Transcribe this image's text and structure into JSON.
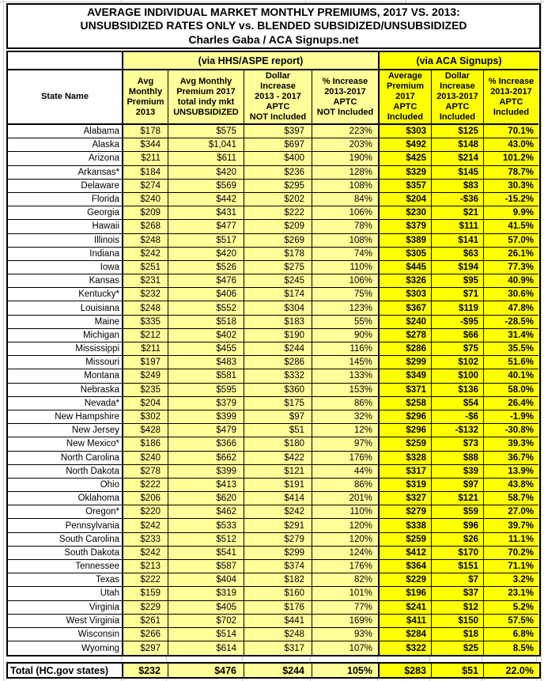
{
  "colors": {
    "light_yellow": "#FFFF99",
    "bright_yellow": "#FFFF00",
    "border": "#000000",
    "gridline": "#C9C9C9"
  },
  "chart_data": {
    "type": "table",
    "title": "AVERAGE INDIVIDUAL MARKET MONTHLY PREMIUMS, 2017 VS. 2013:\nUNSUBSIDIZED RATES ONLY vs. BLENDED SUBSIDIZED/UNSUBSIDIZED\nCharles Gaba / ACA Signups.net",
    "group_headers": {
      "hhs": "(via HHS/ASPE report)",
      "aca": "(via ACA Signups)"
    },
    "columns": [
      "State Name",
      "Avg\nMonthly\nPremium\n2013",
      "Avg Monthly\nPremium 2017\ntotal indy mkt\nUNSUBSIDIZED",
      "Dollar\nIncrease\n2013 - 2017\nAPTC\nNOT Included",
      "% Increase\n2013-2017\nAPTC\nNOT Included",
      "Average\nPremium\n2017\nAPTC\nIncluded",
      "Dollar\nIncrease\n2013-2017\nAPTC\nIncluded",
      "% Increase\n2013-2017\nAPTC\nIncluded"
    ],
    "rows": [
      {
        "state": "Alabama",
        "cells": [
          "$178",
          "$575",
          "$397",
          "223%",
          "$303",
          "$125",
          "70.1%"
        ]
      },
      {
        "state": "Alaska",
        "cells": [
          "$344",
          "$1,041",
          "$697",
          "203%",
          "$492",
          "$148",
          "43.0%"
        ]
      },
      {
        "state": "Arizona",
        "cells": [
          "$211",
          "$611",
          "$400",
          "190%",
          "$425",
          "$214",
          "101.2%"
        ]
      },
      {
        "state": "Arkansas*",
        "cells": [
          "$184",
          "$420",
          "$236",
          "128%",
          "$329",
          "$145",
          "78.7%"
        ]
      },
      {
        "state": "Delaware",
        "cells": [
          "$274",
          "$569",
          "$295",
          "108%",
          "$357",
          "$83",
          "30.3%"
        ]
      },
      {
        "state": "Florida",
        "cells": [
          "$240",
          "$442",
          "$202",
          "84%",
          "$204",
          "-$36",
          "-15.2%"
        ]
      },
      {
        "state": "Georgia",
        "cells": [
          "$209",
          "$431",
          "$222",
          "106%",
          "$230",
          "$21",
          "9.9%"
        ]
      },
      {
        "state": "Hawaii",
        "cells": [
          "$268",
          "$477",
          "$209",
          "78%",
          "$379",
          "$111",
          "41.5%"
        ]
      },
      {
        "state": "Illinois",
        "cells": [
          "$248",
          "$517",
          "$269",
          "108%",
          "$389",
          "$141",
          "57.0%"
        ]
      },
      {
        "state": "Indiana",
        "cells": [
          "$242",
          "$420",
          "$178",
          "74%",
          "$305",
          "$63",
          "26.1%"
        ]
      },
      {
        "state": "Iowa",
        "cells": [
          "$251",
          "$526",
          "$275",
          "110%",
          "$445",
          "$194",
          "77.3%"
        ]
      },
      {
        "state": "Kansas",
        "cells": [
          "$231",
          "$476",
          "$245",
          "106%",
          "$326",
          "$95",
          "40.9%"
        ]
      },
      {
        "state": "Kentucky*",
        "cells": [
          "$232",
          "$406",
          "$174",
          "75%",
          "$303",
          "$71",
          "30.6%"
        ]
      },
      {
        "state": "Louisiana",
        "cells": [
          "$248",
          "$552",
          "$304",
          "123%",
          "$367",
          "$119",
          "47.8%"
        ]
      },
      {
        "state": "Maine",
        "cells": [
          "$335",
          "$518",
          "$183",
          "55%",
          "$240",
          "-$95",
          "-28.5%"
        ]
      },
      {
        "state": "Michigan",
        "cells": [
          "$212",
          "$402",
          "$190",
          "90%",
          "$278",
          "$66",
          "31.4%"
        ]
      },
      {
        "state": "Mississippi",
        "cells": [
          "$211",
          "$455",
          "$244",
          "116%",
          "$286",
          "$75",
          "35.5%"
        ]
      },
      {
        "state": "Missouri",
        "cells": [
          "$197",
          "$483",
          "$286",
          "145%",
          "$299",
          "$102",
          "51.6%"
        ]
      },
      {
        "state": "Montana",
        "cells": [
          "$249",
          "$581",
          "$332",
          "133%",
          "$349",
          "$100",
          "40.1%"
        ]
      },
      {
        "state": "Nebraska",
        "cells": [
          "$235",
          "$595",
          "$360",
          "153%",
          "$371",
          "$136",
          "58.0%"
        ]
      },
      {
        "state": "Nevada*",
        "cells": [
          "$204",
          "$379",
          "$175",
          "86%",
          "$258",
          "$54",
          "26.4%"
        ]
      },
      {
        "state": "New Hampshire",
        "cells": [
          "$302",
          "$399",
          "$97",
          "32%",
          "$296",
          "-$6",
          "-1.9%"
        ]
      },
      {
        "state": "New Jersey",
        "cells": [
          "$428",
          "$479",
          "$51",
          "12%",
          "$296",
          "-$132",
          "-30.8%"
        ]
      },
      {
        "state": "New Mexico*",
        "cells": [
          "$186",
          "$366",
          "$180",
          "97%",
          "$259",
          "$73",
          "39.3%"
        ]
      },
      {
        "state": "North Carolina",
        "cells": [
          "$240",
          "$662",
          "$422",
          "176%",
          "$328",
          "$88",
          "36.7%"
        ]
      },
      {
        "state": "North Dakota",
        "cells": [
          "$278",
          "$399",
          "$121",
          "44%",
          "$317",
          "$39",
          "13.9%"
        ]
      },
      {
        "state": "Ohio",
        "cells": [
          "$222",
          "$413",
          "$191",
          "86%",
          "$319",
          "$97",
          "43.8%"
        ]
      },
      {
        "state": "Oklahoma",
        "cells": [
          "$206",
          "$620",
          "$414",
          "201%",
          "$327",
          "$121",
          "58.7%"
        ]
      },
      {
        "state": "Oregon*",
        "cells": [
          "$220",
          "$462",
          "$242",
          "110%",
          "$279",
          "$59",
          "27.0%"
        ]
      },
      {
        "state": "Pennsylvania",
        "cells": [
          "$242",
          "$533",
          "$291",
          "120%",
          "$338",
          "$96",
          "39.7%"
        ]
      },
      {
        "state": "South Carolina",
        "cells": [
          "$233",
          "$512",
          "$279",
          "120%",
          "$259",
          "$26",
          "11.1%"
        ]
      },
      {
        "state": "South Dakota",
        "cells": [
          "$242",
          "$541",
          "$299",
          "124%",
          "$412",
          "$170",
          "70.2%"
        ]
      },
      {
        "state": "Tennessee",
        "cells": [
          "$213",
          "$587",
          "$374",
          "176%",
          "$364",
          "$151",
          "71.1%"
        ]
      },
      {
        "state": "Texas",
        "cells": [
          "$222",
          "$404",
          "$182",
          "82%",
          "$229",
          "$7",
          "3.2%"
        ]
      },
      {
        "state": "Utah",
        "cells": [
          "$159",
          "$319",
          "$160",
          "101%",
          "$196",
          "$37",
          "23.1%"
        ]
      },
      {
        "state": "Virginia",
        "cells": [
          "$229",
          "$405",
          "$176",
          "77%",
          "$241",
          "$12",
          "5.2%"
        ]
      },
      {
        "state": "West Virginia",
        "cells": [
          "$261",
          "$702",
          "$441",
          "169%",
          "$411",
          "$150",
          "57.5%"
        ]
      },
      {
        "state": "Wisconsin",
        "cells": [
          "$266",
          "$514",
          "$248",
          "93%",
          "$284",
          "$18",
          "6.8%"
        ]
      },
      {
        "state": "Wyoming",
        "cells": [
          "$297",
          "$614",
          "$317",
          "107%",
          "$322",
          "$25",
          "8.5%"
        ]
      }
    ],
    "total": {
      "state": "Total (HC.gov states)",
      "cells": [
        "$232",
        "$476",
        "$244",
        "105%",
        "$283",
        "$51",
        "22.0%"
      ]
    }
  }
}
